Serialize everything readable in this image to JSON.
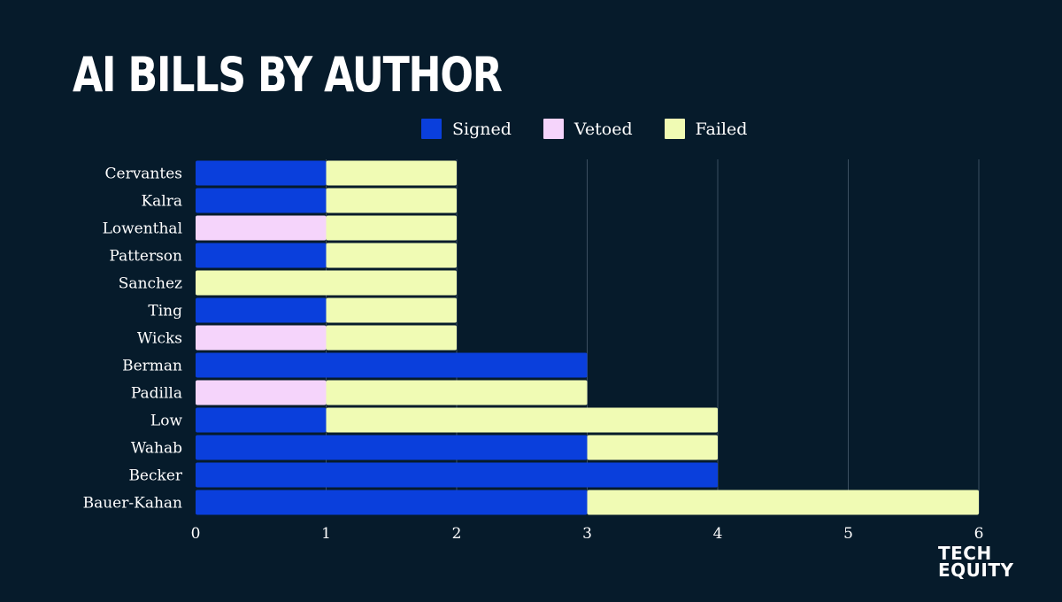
{
  "title": "AI BILLS BY AUTHOR",
  "logo": {
    "line1": "TECH",
    "line2": "EQUITY"
  },
  "colors": {
    "background": "#061b2b",
    "signed": "#0a3fdc",
    "vetoed": "#f5d4fb",
    "failed": "#f0fbb4",
    "grid": "#3b4f60",
    "text": "#ffffff"
  },
  "chart_data": {
    "type": "bar",
    "orientation": "horizontal",
    "stacked": true,
    "title": "AI BILLS BY AUTHOR",
    "xlabel": "",
    "ylabel": "",
    "xlim": [
      0,
      6
    ],
    "x_ticks": [
      "0",
      "1",
      "2",
      "3",
      "4",
      "5",
      "6"
    ],
    "grid": "vertical",
    "legend_position": "top",
    "categories": [
      "Cervantes",
      "Kalra",
      "Lowenthal",
      "Patterson",
      "Sanchez",
      "Ting",
      "Wicks",
      "Berman",
      "Padilla",
      "Low",
      "Wahab",
      "Becker",
      "Bauer-Kahan"
    ],
    "series": [
      {
        "name": "Signed",
        "color": "#0a3fdc",
        "values": [
          1,
          1,
          0,
          1,
          0,
          1,
          0,
          3,
          0,
          1,
          3,
          4,
          3
        ]
      },
      {
        "name": "Vetoed",
        "color": "#f5d4fb",
        "values": [
          0,
          0,
          1,
          0,
          0,
          0,
          1,
          0,
          1,
          0,
          0,
          0,
          0
        ]
      },
      {
        "name": "Failed",
        "color": "#f0fbb4",
        "values": [
          1,
          1,
          1,
          1,
          2,
          1,
          1,
          0,
          2,
          3,
          1,
          0,
          3
        ]
      }
    ]
  }
}
